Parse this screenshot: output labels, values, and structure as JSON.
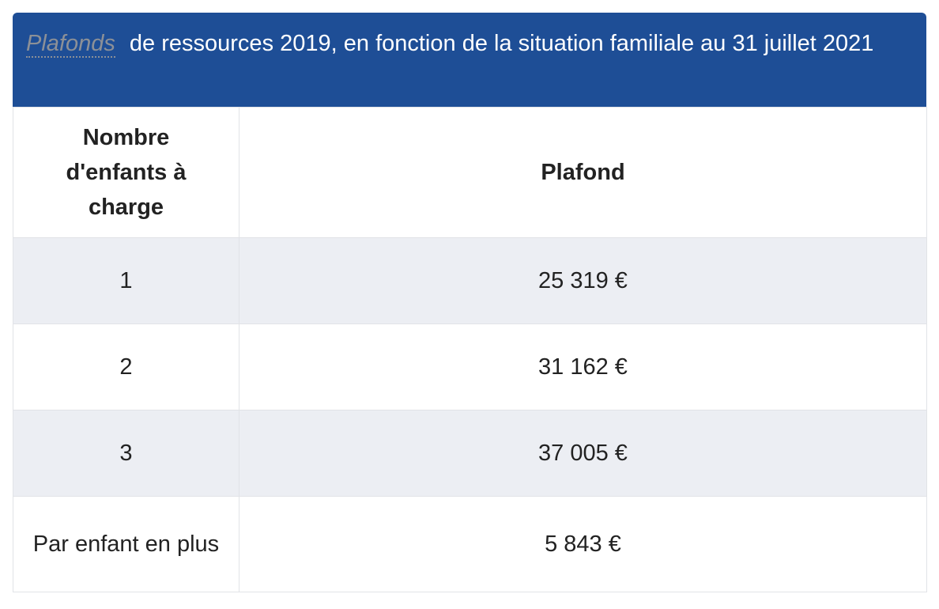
{
  "caption": {
    "term": "Plafonds",
    "text": "de ressources 2019, en fonction de la situation familiale au 31 juillet 2021"
  },
  "columns": {
    "children": "Nombre d'enfants à charge",
    "ceiling": "Plafond"
  },
  "rows": [
    {
      "children": "1",
      "ceiling": "25 319 €"
    },
    {
      "children": "2",
      "ceiling": "31 162 €"
    },
    {
      "children": "3",
      "ceiling": "37 005 €"
    },
    {
      "children": "Par enfant en plus",
      "ceiling": "5 843 €"
    }
  ],
  "colors": {
    "header_bg": "#1e4e96",
    "shaded_row_bg": "#eceef3",
    "term_color": "#8c9097"
  }
}
